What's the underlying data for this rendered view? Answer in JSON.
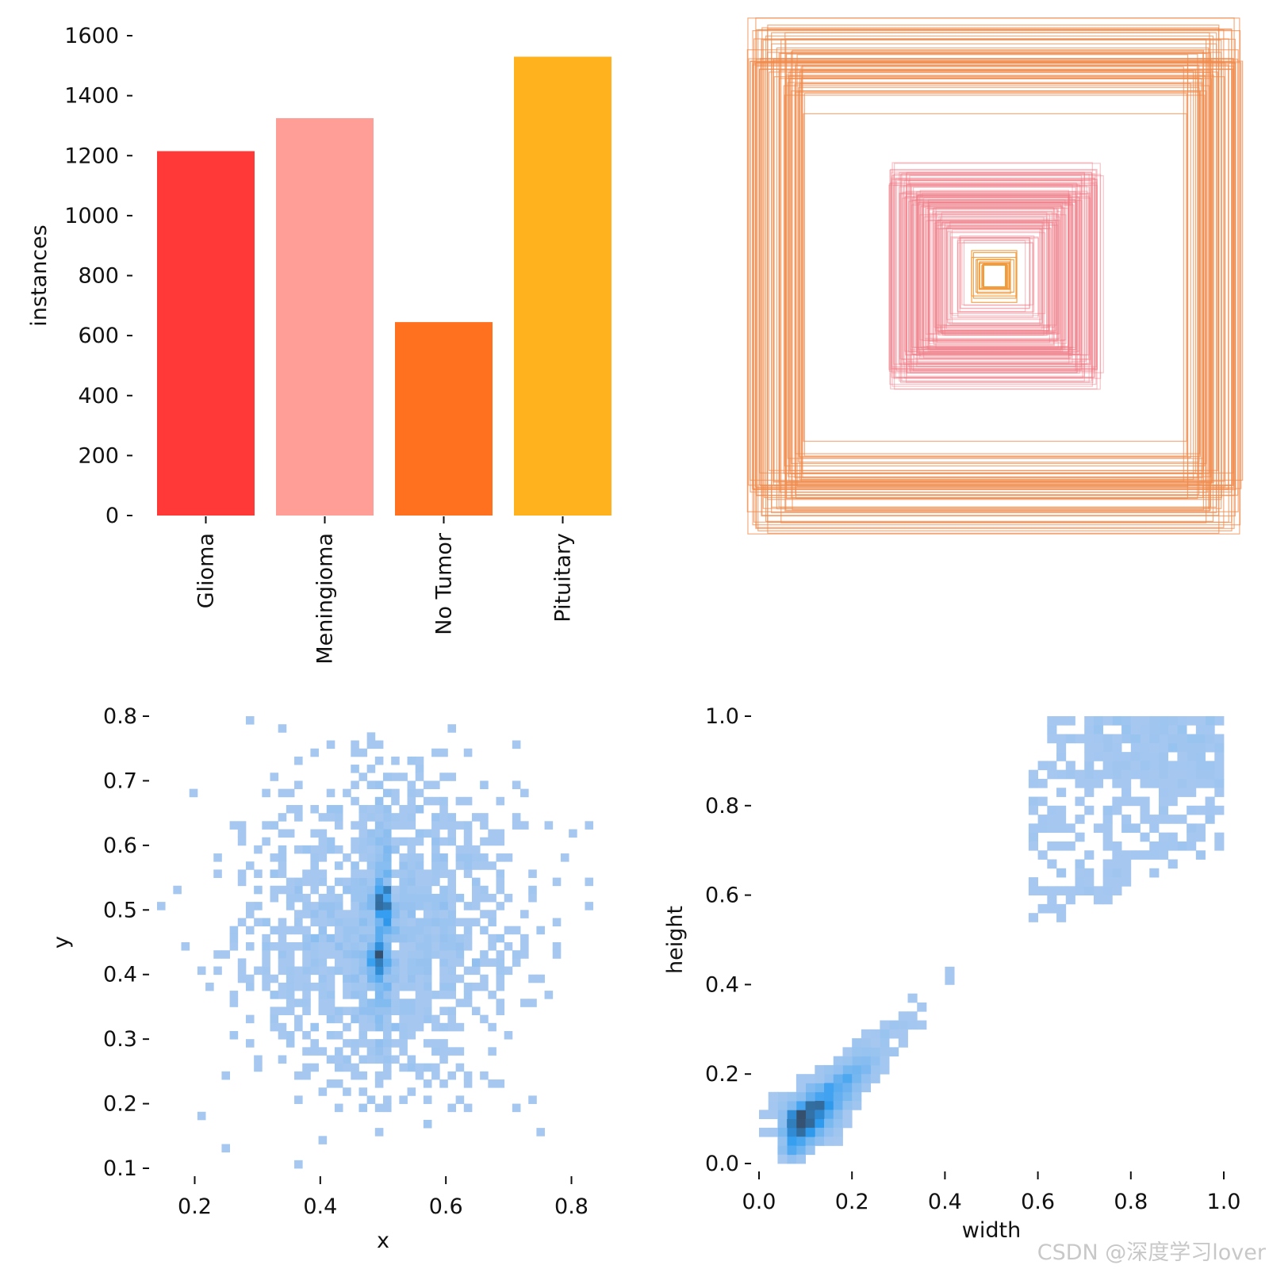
{
  "watermark": "CSDN @深度学习lover",
  "colors": {
    "glioma": "#ff3838",
    "meningioma": "#ff9d97",
    "no_tumor": "#ff701f",
    "pituitary": "#ffb21d",
    "hist_light": "#a6c8f0",
    "hist_mid": "#2f9cf0",
    "hist_dark": "#35506e",
    "axis": "#111111"
  },
  "chart_data": [
    {
      "id": "class_counts",
      "type": "bar",
      "title": "",
      "xlabel": "",
      "ylabel": "instances",
      "categories": [
        "Glioma",
        "Meningioma",
        "No Tumor",
        "Pituitary"
      ],
      "values": [
        1215,
        1325,
        645,
        1530
      ],
      "ylim": [
        0,
        1600
      ],
      "yticks": [
        "0",
        "200",
        "400",
        "600",
        "800",
        "1000",
        "1200",
        "1400",
        "1600"
      ],
      "grid": false
    },
    {
      "id": "box_overlay",
      "type": "box-overlay",
      "title": "",
      "description_series": [
        {
          "name": "large boxes",
          "color": "orange",
          "size_range": [
            0.75,
            0.97
          ]
        },
        {
          "name": "medium boxes",
          "color": "pink",
          "size_range": [
            0.13,
            0.42
          ]
        },
        {
          "name": "small boxes",
          "color": "orange",
          "size_range": [
            0.03,
            0.09
          ]
        }
      ]
    },
    {
      "id": "center_hist",
      "type": "heatmap",
      "xlabel": "x",
      "ylabel": "y",
      "xlim": [
        0.14,
        0.86
      ],
      "ylim": [
        0.1,
        0.8
      ],
      "xticks": [
        "0.2",
        "0.4",
        "0.6",
        "0.8"
      ],
      "yticks": [
        "0.1",
        "0.2",
        "0.3",
        "0.4",
        "0.5",
        "0.6",
        "0.7",
        "0.8"
      ],
      "distribution": {
        "mean_x": 0.5,
        "mean_y": 0.47,
        "std_x": 0.11,
        "std_y": 0.12,
        "dense_column_x": 0.5
      },
      "peaks": [
        {
          "x": 0.5,
          "y": 0.51
        },
        {
          "x": 0.49,
          "y": 0.42
        }
      ]
    },
    {
      "id": "size_hist",
      "type": "heatmap",
      "xlabel": "width",
      "ylabel": "height",
      "xlim": [
        0.0,
        1.0
      ],
      "ylim": [
        0.0,
        1.0
      ],
      "xticks": [
        "0.0",
        "0.2",
        "0.4",
        "0.6",
        "0.8",
        "1.0"
      ],
      "yticks": [
        "0.0",
        "0.2",
        "0.4",
        "0.6",
        "0.8",
        "1.0"
      ],
      "clusters": [
        {
          "name": "small",
          "width_range": [
            0.03,
            0.45
          ],
          "height_range": [
            0.02,
            0.45
          ]
        },
        {
          "name": "large",
          "width_range": [
            0.5,
            1.0
          ],
          "height_range": [
            0.45,
            1.0
          ]
        }
      ],
      "peaks": [
        {
          "x": 0.1,
          "y": 0.1
        }
      ]
    }
  ]
}
